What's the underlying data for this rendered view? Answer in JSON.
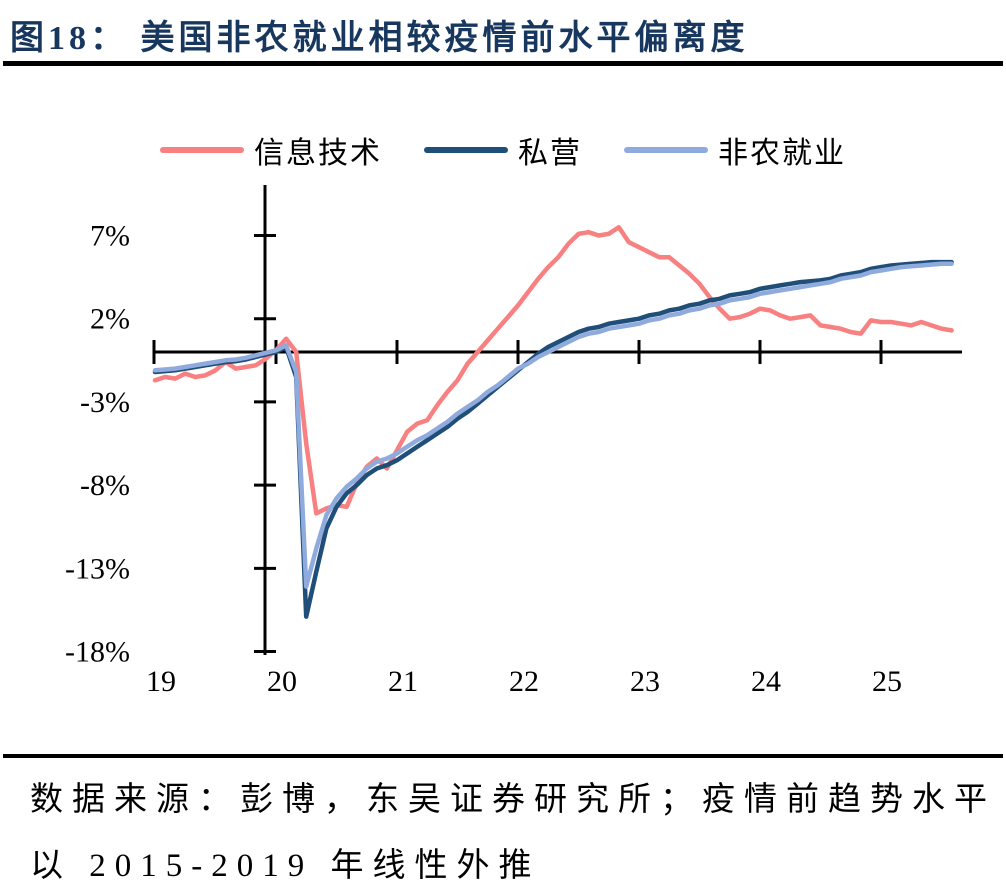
{
  "figure": {
    "title": "图18： 美国非农就业相较疫情前水平偏离度"
  },
  "footer": {
    "line1": "数据来源：彭博，东吴证券研究所；疫情前趋势水平",
    "line2": "以 2015-2019 年线性外推"
  },
  "chart_data": {
    "type": "line",
    "title": "美国非农就业相较疫情前水平偏离度",
    "unit": "%",
    "grid": false,
    "legend_position": "top",
    "x_axis": {
      "range": [
        18.98,
        25.67
      ],
      "ticks": [
        20,
        21,
        22,
        23,
        24,
        25
      ],
      "labels": [
        "19",
        "20",
        "21",
        "22",
        "23",
        "24",
        "25"
      ],
      "label_years": [
        19,
        20,
        21,
        22,
        23,
        24,
        25
      ]
    },
    "y_axis": {
      "range": [
        -18,
        8.5
      ],
      "ticks": [
        7,
        2,
        -3,
        -8,
        -13,
        -18
      ],
      "tick_labels": [
        "7%",
        "2%",
        "-3%",
        "-8%",
        "-13%",
        "-18%"
      ]
    },
    "series": [
      {
        "id": "xinxijishu",
        "name": "信息技术",
        "color": "#F98080",
        "x_start": 19.0,
        "x_step": 0.0833333,
        "values": [
          -1.7,
          -1.5,
          -1.6,
          -1.3,
          -1.5,
          -1.4,
          -1.1,
          -0.6,
          -1.0,
          -0.9,
          -0.8,
          -0.4,
          0.1,
          0.8,
          0.0,
          -5.5,
          -9.7,
          -9.4,
          -9.2,
          -9.3,
          -7.9,
          -6.9,
          -6.4,
          -7.0,
          -5.9,
          -4.8,
          -4.3,
          -4.1,
          -3.2,
          -2.4,
          -1.7,
          -0.7,
          0.0,
          0.7,
          1.4,
          2.1,
          2.8,
          3.6,
          4.4,
          5.1,
          5.7,
          6.5,
          7.1,
          7.2,
          7.0,
          7.1,
          7.5,
          6.6,
          6.3,
          6.0,
          5.7,
          5.7,
          5.2,
          4.7,
          4.1,
          3.3,
          2.6,
          2.0,
          2.1,
          2.3,
          2.6,
          2.5,
          2.2,
          2.0,
          2.1,
          2.2,
          1.6,
          1.5,
          1.4,
          1.2,
          1.1,
          1.9,
          1.8,
          1.8,
          1.7,
          1.6,
          1.8,
          1.6,
          1.4,
          1.3
        ]
      },
      {
        "id": "siying",
        "name": "私营",
        "color": "#1F4E79",
        "x_start": 19.0,
        "x_step": 0.0833333,
        "values": [
          -1.2,
          -1.15,
          -1.1,
          -1.0,
          -0.9,
          -0.8,
          -0.7,
          -0.6,
          -0.55,
          -0.45,
          -0.3,
          -0.15,
          0.0,
          0.3,
          -1.5,
          -15.9,
          -13.2,
          -10.6,
          -9.3,
          -8.5,
          -8.0,
          -7.4,
          -7.0,
          -6.8,
          -6.5,
          -6.1,
          -5.7,
          -5.3,
          -4.9,
          -4.5,
          -4.0,
          -3.6,
          -3.1,
          -2.6,
          -2.1,
          -1.6,
          -1.1,
          -0.6,
          -0.1,
          0.3,
          0.6,
          0.9,
          1.2,
          1.4,
          1.5,
          1.7,
          1.8,
          1.9,
          2.0,
          2.2,
          2.3,
          2.5,
          2.6,
          2.8,
          2.9,
          3.1,
          3.2,
          3.4,
          3.5,
          3.6,
          3.8,
          3.9,
          4.0,
          4.1,
          4.2,
          4.25,
          4.3,
          4.4,
          4.6,
          4.7,
          4.8,
          5.0,
          5.1,
          5.2,
          5.25,
          5.3,
          5.35,
          5.4,
          5.4,
          5.4
        ]
      },
      {
        "id": "feinongjiuye",
        "name": "非农就业",
        "color": "#8FAADC",
        "x_start": 19.0,
        "x_step": 0.0833333,
        "values": [
          -1.1,
          -1.05,
          -1.0,
          -0.9,
          -0.8,
          -0.7,
          -0.6,
          -0.5,
          -0.45,
          -0.35,
          -0.2,
          -0.05,
          0.1,
          0.4,
          -1.2,
          -14.1,
          -11.8,
          -9.8,
          -8.8,
          -8.1,
          -7.6,
          -7.0,
          -6.6,
          -6.4,
          -6.1,
          -5.7,
          -5.3,
          -5.0,
          -4.6,
          -4.2,
          -3.7,
          -3.3,
          -2.9,
          -2.4,
          -2.0,
          -1.5,
          -1.0,
          -0.7,
          -0.3,
          0.0,
          0.3,
          0.6,
          0.9,
          1.1,
          1.2,
          1.4,
          1.5,
          1.6,
          1.7,
          1.9,
          2.0,
          2.2,
          2.3,
          2.5,
          2.6,
          2.8,
          2.9,
          3.1,
          3.2,
          3.3,
          3.5,
          3.6,
          3.7,
          3.8,
          3.9,
          4.0,
          4.1,
          4.2,
          4.4,
          4.5,
          4.6,
          4.8,
          4.9,
          5.0,
          5.1,
          5.15,
          5.2,
          5.25,
          5.3,
          5.3
        ]
      }
    ]
  }
}
